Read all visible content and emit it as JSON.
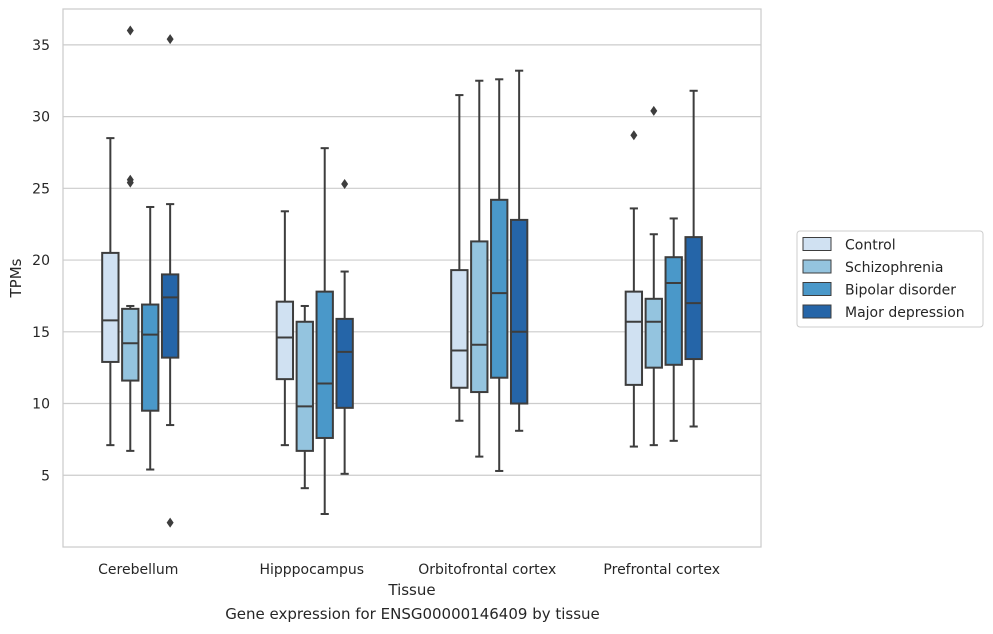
{
  "caption": "Gene expression for ENSG00000146409 by tissue",
  "chart_data": {
    "type": "box",
    "xlabel": "Tissue",
    "ylabel": "TPMs",
    "ylim": [
      0,
      37.5
    ],
    "yticks": [
      5,
      10,
      15,
      20,
      25,
      30,
      35
    ],
    "grid": "horizontal",
    "legend_position": "right",
    "categories": [
      "Cerebellum",
      "Hipppocampus",
      "Orbitofrontal cortex",
      "Prefrontal cortex"
    ],
    "series": [
      {
        "name": "Control",
        "color": "#d0e1f2",
        "boxes": [
          {
            "whisker_low": 7.1,
            "q1": 12.9,
            "median": 15.8,
            "q3": 20.5,
            "whisker_high": 28.5,
            "outliers": []
          },
          {
            "whisker_low": 7.1,
            "q1": 11.7,
            "median": 14.6,
            "q3": 17.1,
            "whisker_high": 23.4,
            "outliers": []
          },
          {
            "whisker_low": 8.8,
            "q1": 11.1,
            "median": 13.7,
            "q3": 19.3,
            "whisker_high": 31.5,
            "outliers": []
          },
          {
            "whisker_low": 7.0,
            "q1": 11.3,
            "median": 15.7,
            "q3": 17.8,
            "whisker_high": 23.6,
            "outliers": [
              28.7
            ]
          }
        ]
      },
      {
        "name": "Schizophrenia",
        "color": "#94c4df",
        "boxes": [
          {
            "whisker_low": 6.7,
            "q1": 11.6,
            "median": 14.2,
            "q3": 16.6,
            "whisker_high": 16.8,
            "outliers": [
              36.0,
              25.6,
              25.4
            ]
          },
          {
            "whisker_low": 4.1,
            "q1": 6.7,
            "median": 9.8,
            "q3": 15.7,
            "whisker_high": 16.8,
            "outliers": []
          },
          {
            "whisker_low": 6.3,
            "q1": 10.8,
            "median": 14.1,
            "q3": 21.3,
            "whisker_high": 32.5,
            "outliers": []
          },
          {
            "whisker_low": 7.1,
            "q1": 12.5,
            "median": 15.7,
            "q3": 17.3,
            "whisker_high": 21.8,
            "outliers": [
              30.4
            ]
          }
        ]
      },
      {
        "name": "Bipolar disorder",
        "color": "#4a98c9",
        "boxes": [
          {
            "whisker_low": 5.4,
            "q1": 9.5,
            "median": 14.8,
            "q3": 16.9,
            "whisker_high": 23.7,
            "outliers": []
          },
          {
            "whisker_low": 2.3,
            "q1": 7.6,
            "median": 11.4,
            "q3": 17.8,
            "whisker_high": 27.8,
            "outliers": []
          },
          {
            "whisker_low": 5.3,
            "q1": 11.8,
            "median": 17.7,
            "q3": 24.2,
            "whisker_high": 32.6,
            "outliers": []
          },
          {
            "whisker_low": 7.4,
            "q1": 12.7,
            "median": 18.4,
            "q3": 20.2,
            "whisker_high": 22.9,
            "outliers": []
          }
        ]
      },
      {
        "name": "Major depression",
        "color": "#2565a8",
        "boxes": [
          {
            "whisker_low": 8.5,
            "q1": 13.2,
            "median": 17.4,
            "q3": 19.0,
            "whisker_high": 23.9,
            "outliers": [
              35.4,
              1.7
            ]
          },
          {
            "whisker_low": 5.1,
            "q1": 9.7,
            "median": 13.6,
            "q3": 15.9,
            "whisker_high": 19.2,
            "outliers": [
              25.3
            ]
          },
          {
            "whisker_low": 8.1,
            "q1": 10.0,
            "median": 15.0,
            "q3": 22.8,
            "whisker_high": 33.2,
            "outliers": []
          },
          {
            "whisker_low": 8.4,
            "q1": 13.1,
            "median": 17.0,
            "q3": 21.6,
            "whisker_high": 31.8,
            "outliers": []
          }
        ]
      }
    ]
  }
}
